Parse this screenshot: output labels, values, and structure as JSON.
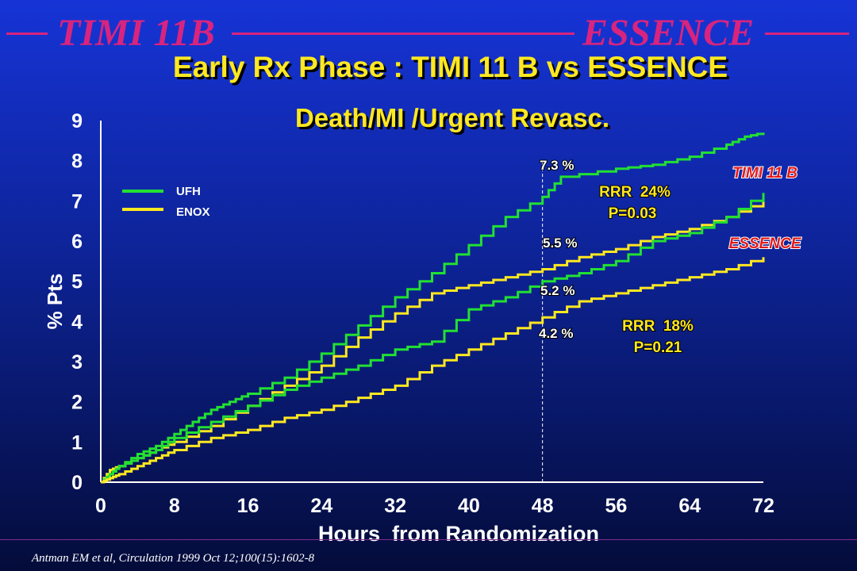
{
  "header": {
    "left_label": "TIMI 11B",
    "right_label": "ESSENCE",
    "accent_color": "#d8247e"
  },
  "title": "Early Rx Phase : TIMI 11 B vs ESSENCE",
  "citation": "Antman EM et al, Circulation 1999 Oct 12;100(15):1602-8",
  "chart_data": {
    "type": "line",
    "title": "Death/MI /Urgent Revasc.",
    "xlabel": "Hours  from Randomization",
    "ylabel": "% Pts",
    "xlim": [
      0,
      72
    ],
    "ylim": [
      0,
      9
    ],
    "x_ticks": [
      0,
      8,
      16,
      24,
      32,
      40,
      48,
      56,
      64,
      72
    ],
    "y_ticks": [
      0,
      1,
      2,
      3,
      4,
      5,
      6,
      7,
      8,
      9
    ],
    "reference_line": {
      "x": 48,
      "style": "dashed"
    },
    "legend": {
      "position": "top-left",
      "entries": [
        {
          "label": "UFH",
          "color": "#22e032"
        },
        {
          "label": "ENOX",
          "color": "#ffe820"
        }
      ]
    },
    "series": [
      {
        "trial": "TIMI 11 B",
        "arm": "UFH",
        "color": "#22e032",
        "x": [
          0,
          1,
          2,
          4,
          6,
          8,
          10,
          12,
          14,
          16,
          20,
          24,
          28,
          32,
          36,
          40,
          44,
          48,
          50,
          56,
          60,
          64,
          68,
          70,
          72
        ],
        "y": [
          0,
          0.3,
          0.4,
          0.7,
          0.9,
          1.2,
          1.5,
          1.8,
          2.0,
          2.2,
          2.6,
          3.2,
          3.9,
          4.6,
          5.2,
          5.9,
          6.6,
          7.1,
          7.6,
          7.8,
          7.9,
          8.1,
          8.4,
          8.6,
          8.7
        ]
      },
      {
        "trial": "TIMI 11 B",
        "arm": "ENOX",
        "color": "#ffe820",
        "x": [
          0,
          1,
          2,
          4,
          6,
          8,
          12,
          16,
          20,
          24,
          28,
          32,
          36,
          40,
          44,
          48,
          52,
          56,
          60,
          64,
          68,
          72
        ],
        "y": [
          0,
          0.3,
          0.4,
          0.6,
          0.8,
          1.0,
          1.4,
          1.9,
          2.4,
          2.9,
          3.6,
          4.2,
          4.7,
          4.9,
          5.1,
          5.3,
          5.6,
          5.8,
          6.1,
          6.3,
          6.6,
          7.0
        ]
      },
      {
        "trial": "ESSENCE",
        "arm": "UFH",
        "color": "#22e032",
        "x": [
          0,
          1,
          2,
          4,
          6,
          8,
          12,
          16,
          20,
          24,
          28,
          32,
          36,
          40,
          44,
          48,
          52,
          56,
          60,
          64,
          68,
          72
        ],
        "y": [
          0,
          0.2,
          0.4,
          0.6,
          0.8,
          1.1,
          1.5,
          1.9,
          2.3,
          2.6,
          2.9,
          3.3,
          3.5,
          4.3,
          4.6,
          5.0,
          5.2,
          5.5,
          6.0,
          6.2,
          6.6,
          7.2
        ]
      },
      {
        "trial": "ESSENCE",
        "arm": "ENOX",
        "color": "#ffe820",
        "x": [
          0,
          1,
          2,
          4,
          6,
          8,
          12,
          16,
          20,
          24,
          28,
          32,
          36,
          40,
          44,
          48,
          52,
          56,
          60,
          64,
          68,
          72
        ],
        "y": [
          0,
          0.1,
          0.2,
          0.4,
          0.6,
          0.8,
          1.1,
          1.3,
          1.6,
          1.8,
          2.1,
          2.4,
          2.9,
          3.3,
          3.7,
          4.1,
          4.5,
          4.7,
          4.9,
          5.1,
          5.3,
          5.6
        ]
      }
    ],
    "annotations": [
      {
        "text": "7.3 %",
        "color": "#ffffff"
      },
      {
        "text": "5.5 %",
        "color": "#ffffff"
      },
      {
        "text": "5.2 %",
        "color": "#ffffff"
      },
      {
        "text": "4.2 %",
        "color": "#ffffff"
      },
      {
        "text": "RRR  24%",
        "color": "#ffe820"
      },
      {
        "text": "P=0.03",
        "color": "#ffe820"
      },
      {
        "text": "RRR  18%",
        "color": "#ffe820"
      },
      {
        "text": "P=0.21",
        "color": "#ffe820"
      },
      {
        "text": "TIMI 11 B",
        "color": "#e21a1a"
      },
      {
        "text": "ESSENCE",
        "color": "#e21a1a"
      }
    ]
  }
}
